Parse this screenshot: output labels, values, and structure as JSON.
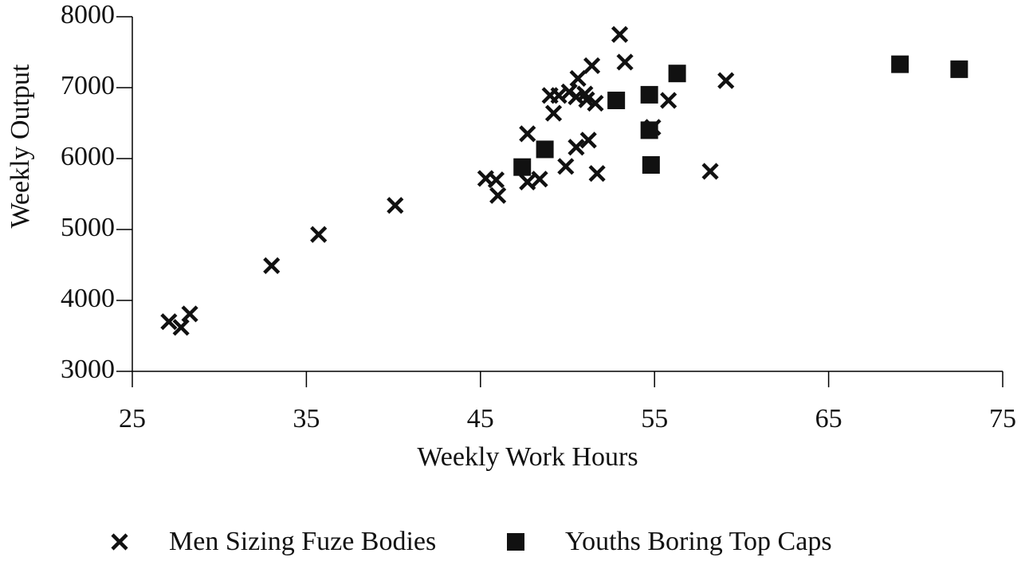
{
  "chart_data": {
    "type": "scatter",
    "x_label": "Weekly Work Hours",
    "y_label": "Weekly Output",
    "xlim": [
      25,
      75
    ],
    "xticks": [
      25,
      35,
      45,
      55,
      65,
      75
    ],
    "ylim": [
      3000,
      8000
    ],
    "yticks": [
      3000,
      4000,
      5000,
      6000,
      7000,
      8000
    ],
    "series": [
      {
        "name": "Men Sizing Fuze Bodies",
        "color": "#111111",
        "marker": "x",
        "x": [
          27.1,
          27.8,
          28.3,
          33.0,
          35.7,
          40.1,
          45.3,
          45.9,
          46.0,
          47.7,
          47.7,
          48.4,
          49.0,
          49.2,
          49.5,
          49.9,
          50.1,
          50.5,
          50.6,
          50.5,
          51.0,
          51.2,
          51.1,
          51.4,
          51.6,
          51.7,
          53.0,
          53.3,
          54.9,
          55.8,
          58.2,
          59.1
        ],
        "values": [
          3700,
          3620,
          3810,
          4490,
          4930,
          5340,
          5720,
          5700,
          5480,
          6350,
          5670,
          5710,
          6890,
          6640,
          6890,
          5890,
          6940,
          6870,
          7130,
          6160,
          6910,
          6260,
          6830,
          7310,
          6780,
          5790,
          7750,
          7360,
          6440,
          6820,
          5820,
          7100
        ]
      },
      {
        "name": "Youths Boring Top Caps",
        "color": "#111111",
        "marker": "square",
        "x": [
          47.4,
          48.7,
          52.8,
          54.7,
          54.7,
          54.8,
          56.3,
          69.1,
          72.5
        ],
        "values": [
          5880,
          6130,
          6820,
          6900,
          6400,
          5910,
          7200,
          7330,
          7260
        ]
      }
    ]
  }
}
